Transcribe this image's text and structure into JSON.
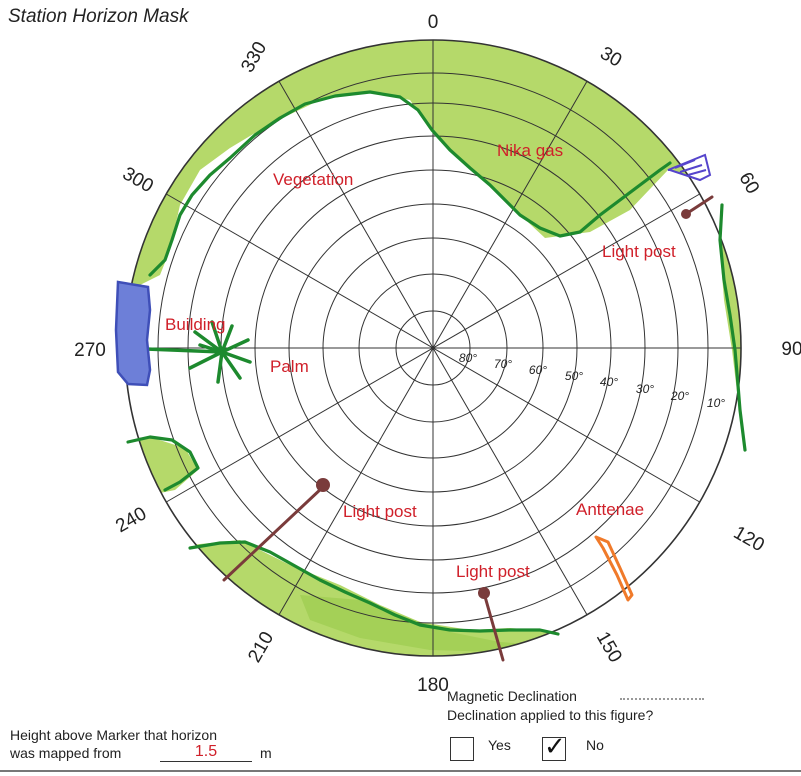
{
  "title": "Station Horizon Mask",
  "azimuth_labels": [
    "0",
    "30",
    "60",
    "90",
    "120",
    "150",
    "180",
    "210",
    "240",
    "270",
    "300",
    "330"
  ],
  "elevation_labels": [
    "80°",
    "70°",
    "60°",
    "50°",
    "40°",
    "30°",
    "20°",
    "10°"
  ],
  "annotations": {
    "vegetation": "Vegetation",
    "nika_gas": "Nika gas",
    "light_post_ne": "Light post",
    "building": "Building",
    "palm": "Palm",
    "light_post_sw": "Light post",
    "anttenae": "Anttenae",
    "light_post_s": "Light post"
  },
  "footer": {
    "height_label_line1": "Height above Marker that horizon",
    "height_label_line2": "was mapped from",
    "height_value": "1.5",
    "height_unit": "m",
    "magnetic_declination_label": "Magnetic Declination",
    "declination_question": "Declination applied to this figure?",
    "yes_label": "Yes",
    "no_label": "No",
    "no_checkmark": "✓"
  },
  "colors": {
    "vegetation_fill": "#b5d96a",
    "horizon_line": "#1d8a2e",
    "building": "#4a5bc4",
    "light_post": "#7a3b3b",
    "antenna": "#f07a2a",
    "label_red": "#d0202a"
  }
}
